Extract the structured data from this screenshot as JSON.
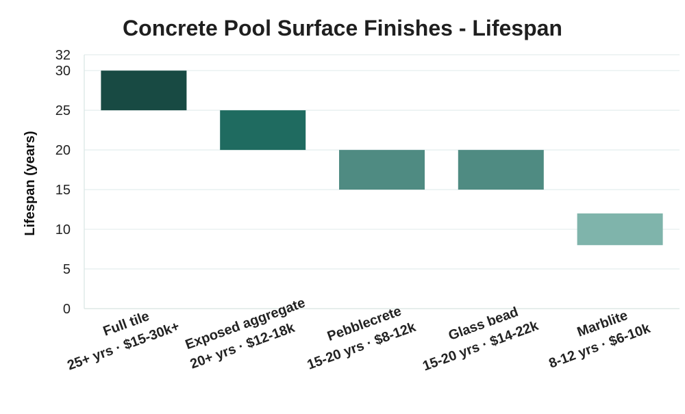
{
  "chart_data": {
    "type": "bar",
    "title": "Concrete Pool Surface Finishes - Lifespan",
    "ylabel": "Lifespan (years)",
    "ylim": [
      0,
      32
    ],
    "yticks": [
      0,
      5,
      10,
      15,
      20,
      25,
      30,
      32
    ],
    "grid": true,
    "categories": [
      {
        "name": "Full tile",
        "detail": "25+ yrs · $15-30k+",
        "low": 25,
        "high": 30,
        "color": "#184a43"
      },
      {
        "name": "Exposed aggregate",
        "detail": "20+ yrs · $12-18k",
        "low": 20,
        "high": 25,
        "color": "#1f6b60"
      },
      {
        "name": "Pebblecrete",
        "detail": "15-20 yrs · $8-12k",
        "low": 15,
        "high": 20,
        "color": "#4f8b82"
      },
      {
        "name": "Glass bead",
        "detail": "15-20 yrs · $14-22k",
        "low": 15,
        "high": 20,
        "color": "#4f8b82"
      },
      {
        "name": "Marblite",
        "detail": "8-12 yrs · $6-10k",
        "low": 8,
        "high": 12,
        "color": "#7fb4ab"
      }
    ]
  }
}
